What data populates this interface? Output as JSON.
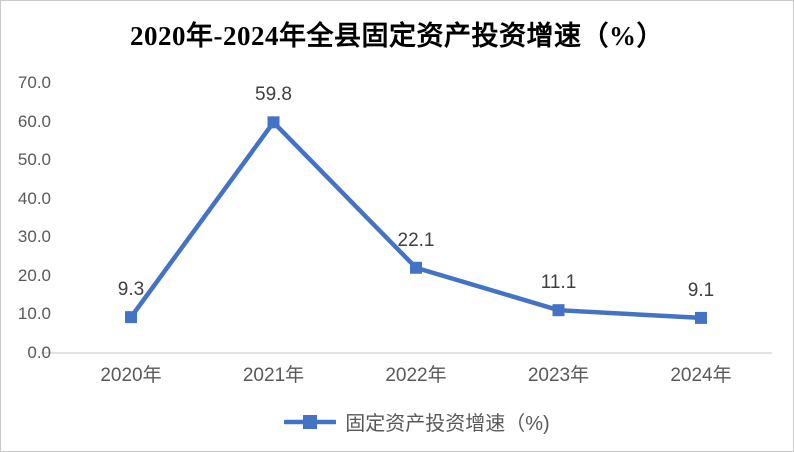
{
  "title": "2020年-2024年全县固定资产投资增速（%）",
  "legend": {
    "label": "固定资产投资增速（%)"
  },
  "chart_data": {
    "type": "line",
    "title": "2020年-2024年全县固定资产投资增速（%）",
    "categories": [
      "2020年",
      "2021年",
      "2022年",
      "2023年",
      "2024年"
    ],
    "series": [
      {
        "name": "固定资产投资增速（%)",
        "values": [
          9.3,
          59.8,
          22.1,
          11.1,
          9.1
        ]
      }
    ],
    "data_labels": [
      "9.3",
      "59.8",
      "22.1",
      "11.1",
      "9.1"
    ],
    "ytick_values": [
      0,
      10,
      20,
      30,
      40,
      50,
      60,
      70
    ],
    "ytick_labels": [
      "0.0",
      "10.0",
      "20.0",
      "30.0",
      "40.0",
      "50.0",
      "60.0",
      "70.0"
    ],
    "ylim": [
      0,
      70
    ],
    "grid": false,
    "legend_position": "bottom",
    "marker": "square",
    "colors": {
      "line": "#4472C4",
      "axis_line": "#D9D9D9",
      "tick_label": "#595959",
      "data_label": "#3f3f3f",
      "title": "#000000"
    }
  }
}
